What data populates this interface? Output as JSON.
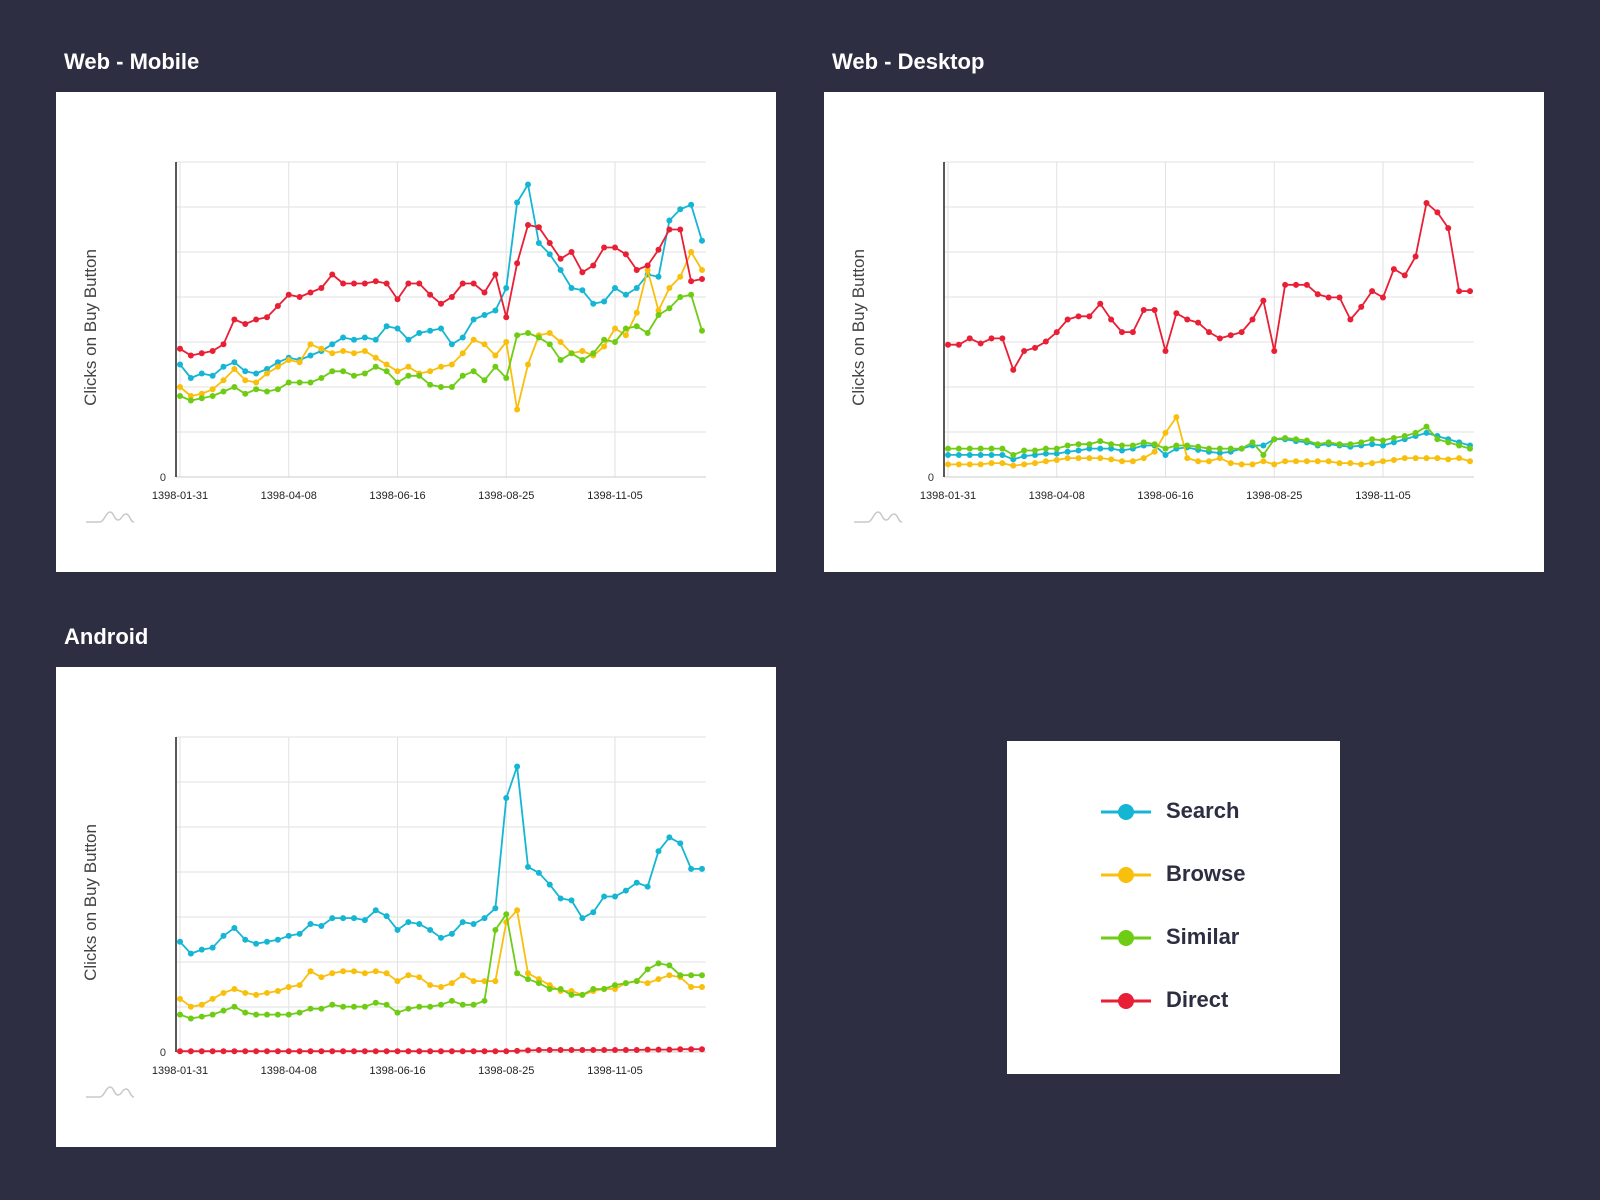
{
  "y_zero_label": "0",
  "x_ticks": [
    "1398-01-31",
    "1398-04-08",
    "1398-06-16",
    "1398-08-25",
    "1398-11-05"
  ],
  "series_colors": {
    "Search": "#14b6d4",
    "Browse": "#f9bf0d",
    "Similar": "#6fcc14",
    "Direct": "#e81f35"
  },
  "legend": [
    {
      "name": "Search",
      "color": "#14b6d4"
    },
    {
      "name": "Browse",
      "color": "#f9bf0d"
    },
    {
      "name": "Similar",
      "color": "#6fcc14"
    },
    {
      "name": "Direct",
      "color": "#e81f35"
    }
  ],
  "chart_data": [
    {
      "type": "line",
      "title": "Web - Mobile",
      "ylabel": "Clicks on Buy Button",
      "xlabel": "",
      "x_range": [
        "1398-01-31",
        "1398-12-26"
      ],
      "x_tick_labels": [
        "1398-01-31",
        "1398-04-08",
        "1398-06-16",
        "1398-08-25",
        "1398-11-05"
      ],
      "y_tick_labels": [
        "0"
      ],
      "ylim": [
        0,
        7
      ],
      "grid": true,
      "series": [
        {
          "name": "Search",
          "color": "#14b6d4",
          "values": [
            2.5,
            2.2,
            2.3,
            2.25,
            2.45,
            2.55,
            2.35,
            2.3,
            2.4,
            2.55,
            2.65,
            2.6,
            2.7,
            2.8,
            2.95,
            3.1,
            3.05,
            3.1,
            3.05,
            3.35,
            3.3,
            3.05,
            3.2,
            3.25,
            3.3,
            2.95,
            3.1,
            3.5,
            3.6,
            3.7,
            4.2,
            6.1,
            6.5,
            5.2,
            4.95,
            4.6,
            4.2,
            4.15,
            3.85,
            3.9,
            4.2,
            4.05,
            4.2,
            4.5,
            4.45,
            5.7,
            5.95,
            6.05,
            5.25
          ]
        },
        {
          "name": "Browse",
          "color": "#f9bf0d",
          "values": [
            2.0,
            1.8,
            1.85,
            1.95,
            2.15,
            2.4,
            2.15,
            2.1,
            2.3,
            2.45,
            2.6,
            2.55,
            2.95,
            2.85,
            2.75,
            2.8,
            2.75,
            2.8,
            2.65,
            2.5,
            2.35,
            2.45,
            2.3,
            2.35,
            2.45,
            2.5,
            2.75,
            3.05,
            2.95,
            2.7,
            3.0,
            1.5,
            2.5,
            3.15,
            3.2,
            3.0,
            2.75,
            2.8,
            2.7,
            2.9,
            3.3,
            3.15,
            3.65,
            4.6,
            3.7,
            4.2,
            4.45,
            5.0,
            4.6
          ]
        },
        {
          "name": "Similar",
          "color": "#6fcc14",
          "values": [
            1.8,
            1.7,
            1.75,
            1.8,
            1.9,
            2.0,
            1.85,
            1.95,
            1.9,
            1.95,
            2.1,
            2.1,
            2.1,
            2.2,
            2.35,
            2.35,
            2.25,
            2.3,
            2.45,
            2.35,
            2.1,
            2.25,
            2.25,
            2.05,
            2.0,
            2.0,
            2.25,
            2.35,
            2.15,
            2.45,
            2.2,
            3.15,
            3.2,
            3.1,
            2.95,
            2.6,
            2.75,
            2.6,
            2.75,
            3.05,
            3.0,
            3.3,
            3.35,
            3.2,
            3.6,
            3.75,
            4.0,
            4.05,
            3.25
          ]
        },
        {
          "name": "Direct",
          "color": "#e81f35",
          "values": [
            2.85,
            2.7,
            2.75,
            2.8,
            2.95,
            3.5,
            3.4,
            3.5,
            3.55,
            3.8,
            4.05,
            4.0,
            4.1,
            4.2,
            4.5,
            4.3,
            4.3,
            4.3,
            4.35,
            4.3,
            3.95,
            4.3,
            4.3,
            4.05,
            3.85,
            4.0,
            4.3,
            4.3,
            4.1,
            4.5,
            3.55,
            4.75,
            5.6,
            5.55,
            5.2,
            4.85,
            5.0,
            4.55,
            4.7,
            5.1,
            5.1,
            4.95,
            4.6,
            4.7,
            5.05,
            5.5,
            5.5,
            4.35,
            4.4
          ]
        }
      ]
    },
    {
      "type": "line",
      "title": "Web - Desktop",
      "ylabel": "Clicks on Buy Button",
      "xlabel": "",
      "x_range": [
        "1398-01-31",
        "1398-12-26"
      ],
      "x_tick_labels": [
        "1398-01-31",
        "1398-04-08",
        "1398-06-16",
        "1398-08-25",
        "1398-11-05"
      ],
      "y_tick_labels": [
        "0"
      ],
      "ylim": [
        0,
        5
      ],
      "grid": true,
      "series": [
        {
          "name": "Search",
          "color": "#14b6d4",
          "values": [
            0.35,
            0.35,
            0.35,
            0.35,
            0.35,
            0.35,
            0.28,
            0.33,
            0.35,
            0.37,
            0.37,
            0.4,
            0.42,
            0.45,
            0.45,
            0.45,
            0.42,
            0.45,
            0.5,
            0.5,
            0.35,
            0.45,
            0.47,
            0.43,
            0.4,
            0.38,
            0.4,
            0.45,
            0.5,
            0.5,
            0.6,
            0.6,
            0.57,
            0.55,
            0.5,
            0.52,
            0.5,
            0.48,
            0.5,
            0.52,
            0.5,
            0.55,
            0.6,
            0.65,
            0.7,
            0.65,
            0.6,
            0.55,
            0.5
          ]
        },
        {
          "name": "Browse",
          "color": "#f9bf0d",
          "values": [
            0.2,
            0.2,
            0.2,
            0.2,
            0.22,
            0.22,
            0.18,
            0.2,
            0.22,
            0.25,
            0.27,
            0.3,
            0.3,
            0.3,
            0.3,
            0.28,
            0.25,
            0.25,
            0.3,
            0.4,
            0.7,
            0.95,
            0.3,
            0.25,
            0.25,
            0.3,
            0.22,
            0.2,
            0.2,
            0.25,
            0.2,
            0.25,
            0.25,
            0.25,
            0.25,
            0.25,
            0.22,
            0.22,
            0.2,
            0.22,
            0.25,
            0.27,
            0.3,
            0.3,
            0.3,
            0.3,
            0.28,
            0.3,
            0.25
          ]
        },
        {
          "name": "Similar",
          "color": "#6fcc14",
          "values": [
            0.45,
            0.45,
            0.45,
            0.45,
            0.45,
            0.45,
            0.35,
            0.42,
            0.42,
            0.45,
            0.45,
            0.5,
            0.52,
            0.52,
            0.57,
            0.52,
            0.5,
            0.5,
            0.55,
            0.52,
            0.45,
            0.5,
            0.5,
            0.48,
            0.45,
            0.45,
            0.45,
            0.45,
            0.55,
            0.35,
            0.6,
            0.62,
            0.6,
            0.58,
            0.52,
            0.55,
            0.52,
            0.52,
            0.55,
            0.6,
            0.58,
            0.62,
            0.65,
            0.7,
            0.8,
            0.6,
            0.55,
            0.5,
            0.45
          ]
        },
        {
          "name": "Direct",
          "color": "#e81f35",
          "values": [
            2.1,
            2.1,
            2.2,
            2.12,
            2.2,
            2.2,
            1.7,
            2.0,
            2.05,
            2.15,
            2.3,
            2.5,
            2.55,
            2.55,
            2.75,
            2.5,
            2.3,
            2.3,
            2.65,
            2.65,
            2.0,
            2.6,
            2.5,
            2.45,
            2.3,
            2.2,
            2.25,
            2.3,
            2.5,
            2.8,
            2.0,
            3.05,
            3.05,
            3.05,
            2.9,
            2.85,
            2.85,
            2.5,
            2.7,
            2.95,
            2.85,
            3.3,
            3.2,
            3.5,
            4.35,
            4.2,
            3.95,
            2.95,
            2.95
          ]
        }
      ]
    },
    {
      "type": "line",
      "title": "Android",
      "ylabel": "Clicks on Buy Button",
      "xlabel": "",
      "x_range": [
        "1398-01-31",
        "1398-12-26"
      ],
      "x_tick_labels": [
        "1398-01-31",
        "1398-04-08",
        "1398-06-16",
        "1398-08-25",
        "1398-11-05"
      ],
      "y_tick_labels": [
        "0"
      ],
      "ylim": [
        0,
        8
      ],
      "grid": true,
      "series": [
        {
          "name": "Search",
          "color": "#14b6d4",
          "values": [
            2.8,
            2.5,
            2.6,
            2.65,
            2.95,
            3.15,
            2.85,
            2.75,
            2.8,
            2.85,
            2.95,
            3.0,
            3.25,
            3.2,
            3.4,
            3.4,
            3.4,
            3.35,
            3.6,
            3.45,
            3.1,
            3.3,
            3.25,
            3.1,
            2.9,
            3.0,
            3.3,
            3.25,
            3.4,
            3.65,
            6.45,
            7.25,
            4.7,
            4.55,
            4.25,
            3.9,
            3.85,
            3.4,
            3.55,
            3.95,
            3.95,
            4.1,
            4.3,
            4.2,
            5.1,
            5.45,
            5.3,
            4.65,
            4.65
          ]
        },
        {
          "name": "Browse",
          "color": "#f9bf0d",
          "values": [
            1.35,
            1.15,
            1.2,
            1.35,
            1.5,
            1.6,
            1.5,
            1.45,
            1.5,
            1.55,
            1.65,
            1.7,
            2.05,
            1.9,
            2.0,
            2.05,
            2.05,
            2.0,
            2.05,
            2.0,
            1.8,
            1.95,
            1.9,
            1.7,
            1.65,
            1.75,
            1.95,
            1.8,
            1.8,
            1.8,
            3.3,
            3.6,
            2.0,
            1.85,
            1.7,
            1.55,
            1.55,
            1.45,
            1.55,
            1.6,
            1.6,
            1.75,
            1.8,
            1.75,
            1.85,
            1.95,
            1.9,
            1.65,
            1.65
          ]
        },
        {
          "name": "Similar",
          "color": "#6fcc14",
          "values": [
            0.95,
            0.85,
            0.9,
            0.95,
            1.05,
            1.15,
            1.0,
            0.95,
            0.95,
            0.95,
            0.95,
            1.0,
            1.1,
            1.1,
            1.2,
            1.15,
            1.15,
            1.15,
            1.25,
            1.2,
            1.0,
            1.1,
            1.15,
            1.15,
            1.2,
            1.3,
            1.2,
            1.2,
            1.3,
            3.1,
            3.5,
            2.0,
            1.85,
            1.75,
            1.6,
            1.6,
            1.45,
            1.45,
            1.6,
            1.6,
            1.7,
            1.75,
            1.8,
            2.1,
            2.25,
            2.2,
            1.95,
            1.95,
            1.95
          ]
        },
        {
          "name": "Direct",
          "color": "#e81f35",
          "values": [
            0.02,
            0.02,
            0.02,
            0.02,
            0.02,
            0.02,
            0.02,
            0.02,
            0.02,
            0.02,
            0.02,
            0.02,
            0.02,
            0.02,
            0.02,
            0.02,
            0.02,
            0.02,
            0.02,
            0.02,
            0.02,
            0.02,
            0.02,
            0.02,
            0.02,
            0.02,
            0.02,
            0.02,
            0.02,
            0.02,
            0.02,
            0.03,
            0.04,
            0.05,
            0.05,
            0.05,
            0.05,
            0.05,
            0.05,
            0.05,
            0.05,
            0.05,
            0.05,
            0.06,
            0.06,
            0.06,
            0.07,
            0.07,
            0.07
          ]
        }
      ]
    }
  ]
}
